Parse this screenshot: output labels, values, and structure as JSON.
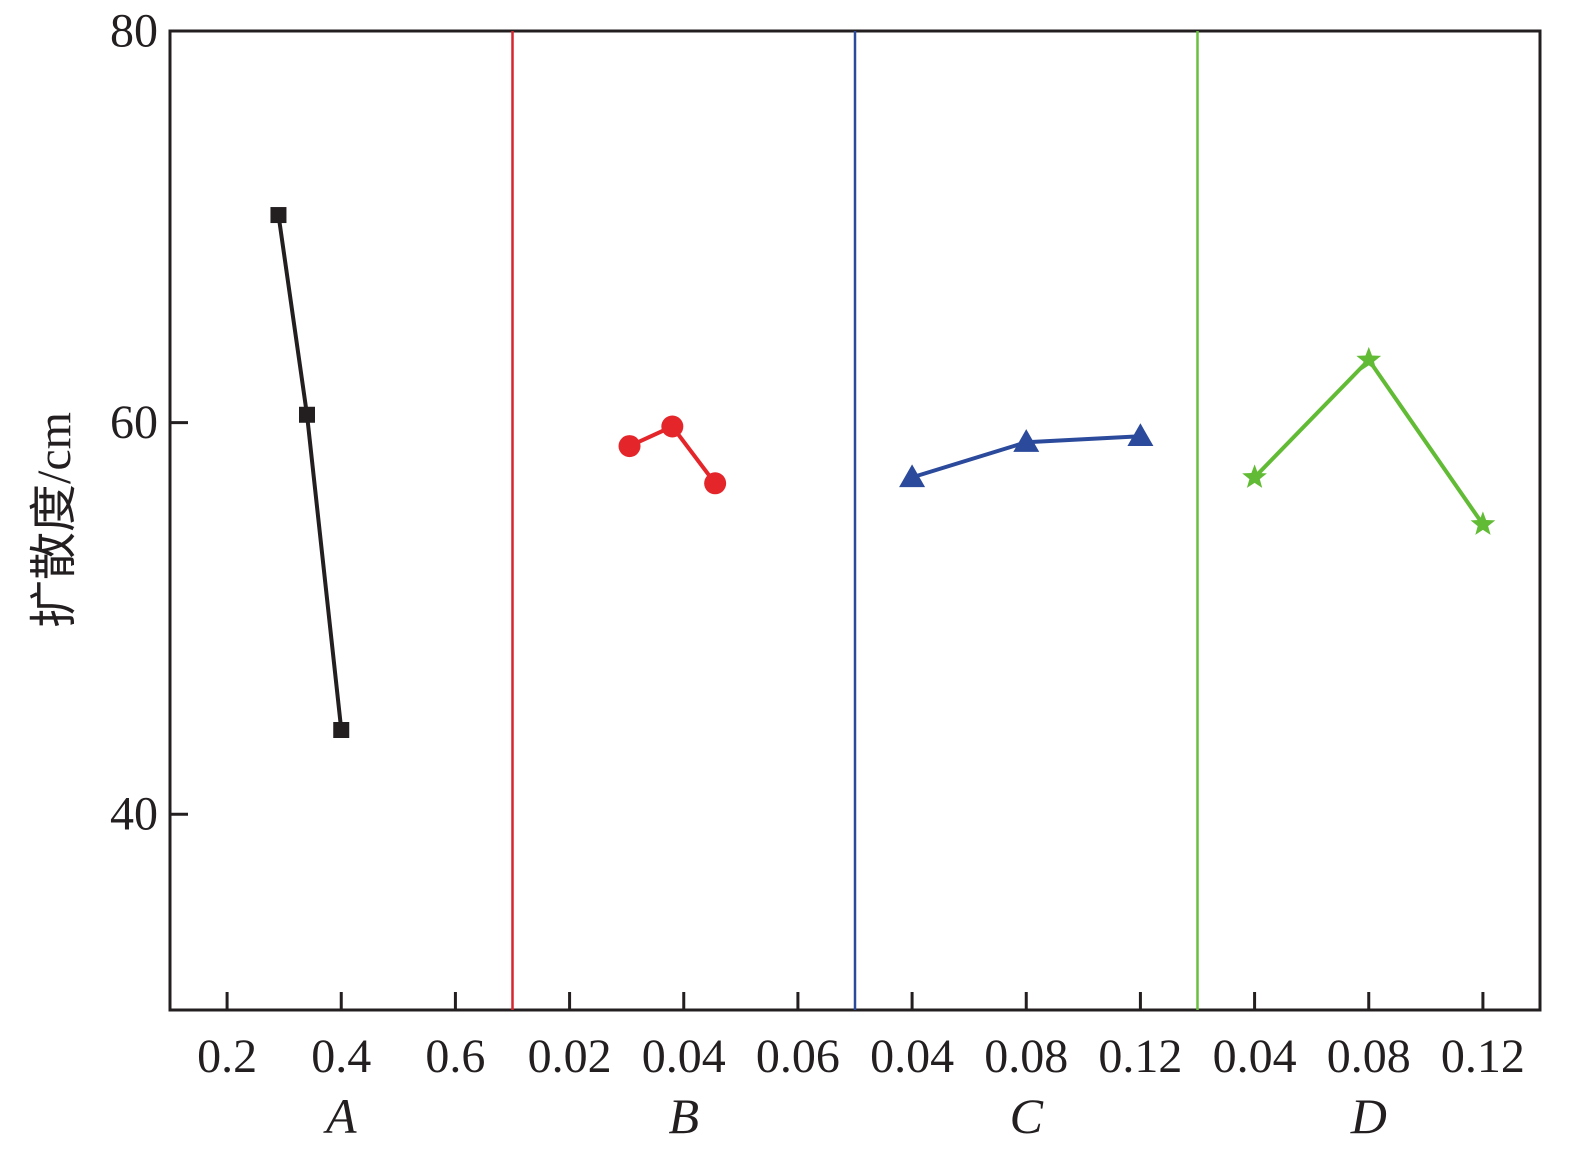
{
  "chart_data": {
    "type": "line",
    "ylabel": "扩散度/cm",
    "ylim": [
      30,
      80
    ],
    "yticks": [
      40,
      60,
      80
    ],
    "grid": false,
    "panels": [
      {
        "label": "A",
        "xlim": [
          0.1,
          0.7
        ],
        "xticks": [
          0.2,
          0.4,
          0.6
        ],
        "tick_labels": [
          "0.2",
          "0.4",
          "0.6"
        ],
        "color": "#231f20",
        "divider_color": "#d7262e",
        "marker": "square",
        "points": [
          {
            "x": 0.29,
            "y": 70.6
          },
          {
            "x": 0.34,
            "y": 60.4
          },
          {
            "x": 0.4,
            "y": 44.3
          }
        ]
      },
      {
        "label": "B",
        "xlim": [
          0.01,
          0.07
        ],
        "xticks": [
          0.02,
          0.04,
          0.06
        ],
        "tick_labels": [
          "0.02",
          "0.04",
          "0.06"
        ],
        "color": "#e4262b",
        "divider_color": "#2b4a9b",
        "marker": "circle",
        "points": [
          {
            "x": 0.0305,
            "y": 58.8
          },
          {
            "x": 0.038,
            "y": 59.8
          },
          {
            "x": 0.0455,
            "y": 56.9
          }
        ]
      },
      {
        "label": "C",
        "xlim": [
          0.02,
          0.14
        ],
        "xticks": [
          0.04,
          0.08,
          0.12
        ],
        "tick_labels": [
          "0.04",
          "0.08",
          "0.12"
        ],
        "color": "#2b4a9b",
        "divider_color": "#6abf40",
        "marker": "triangle",
        "points": [
          {
            "x": 0.04,
            "y": 57.2
          },
          {
            "x": 0.08,
            "y": 59.0
          },
          {
            "x": 0.12,
            "y": 59.3
          }
        ]
      },
      {
        "label": "D",
        "xlim": [
          0.02,
          0.14
        ],
        "xticks": [
          0.04,
          0.08,
          0.12
        ],
        "tick_labels": [
          "0.04",
          "0.08",
          "0.12"
        ],
        "color": "#62bb35",
        "divider_color": null,
        "marker": "star",
        "points": [
          {
            "x": 0.04,
            "y": 57.2
          },
          {
            "x": 0.08,
            "y": 63.2
          },
          {
            "x": 0.12,
            "y": 54.8
          }
        ]
      }
    ]
  }
}
